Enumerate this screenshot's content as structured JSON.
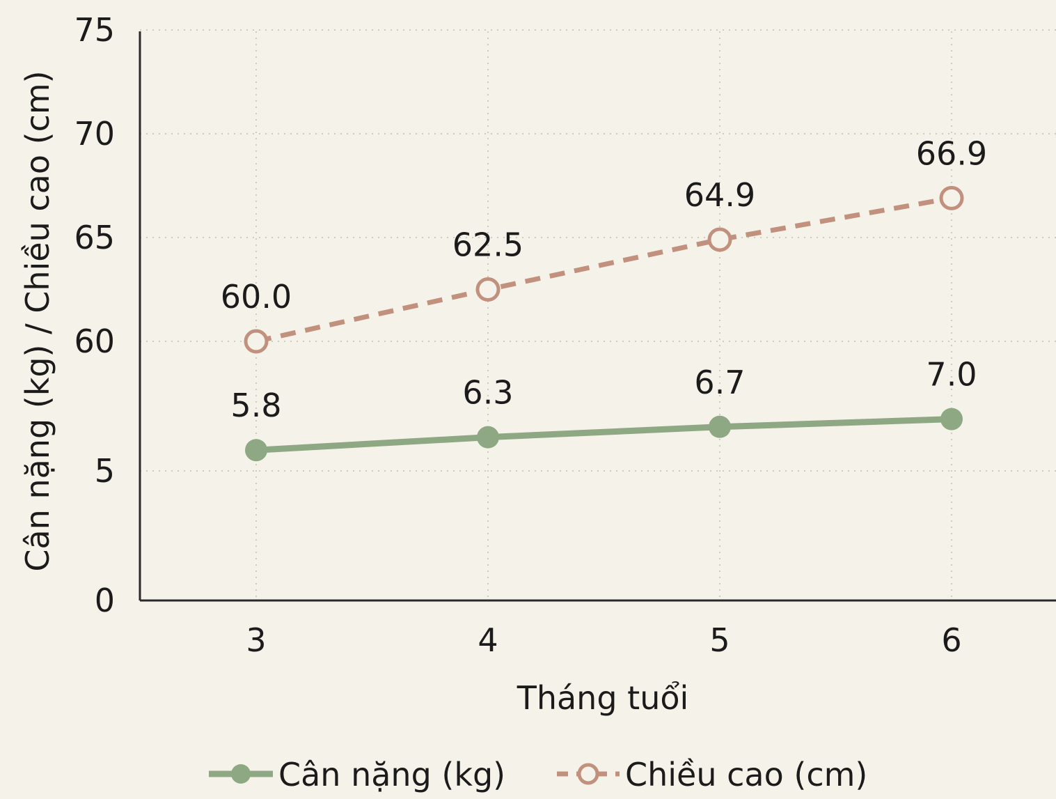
{
  "chart_data": {
    "type": "line",
    "title": "",
    "xlabel": "Tháng tuổi",
    "ylabel": "Cân nặng (kg) / Chiều cao (cm)",
    "categories": [
      "3",
      "4",
      "5",
      "6"
    ],
    "y_ticks": [
      "0",
      "5",
      "60",
      "65",
      "70",
      "75"
    ],
    "y_axis_break": true,
    "grid": true,
    "legend_position": "bottom",
    "series": [
      {
        "name": "Cân nặng (kg)",
        "values": [
          5.8,
          6.3,
          6.7,
          7.0
        ],
        "labels": [
          "5.8",
          "6.3",
          "6.7",
          "7.0"
        ],
        "color": "#8ea884",
        "line_style": "solid",
        "marker": "filled-circle"
      },
      {
        "name": "Chiều cao (cm)",
        "values": [
          60.0,
          62.5,
          64.9,
          66.9
        ],
        "labels": [
          "60.0",
          "62.5",
          "64.9",
          "66.9"
        ],
        "color": "#c2917e",
        "line_style": "dashed",
        "marker": "hollow-circle"
      }
    ]
  }
}
